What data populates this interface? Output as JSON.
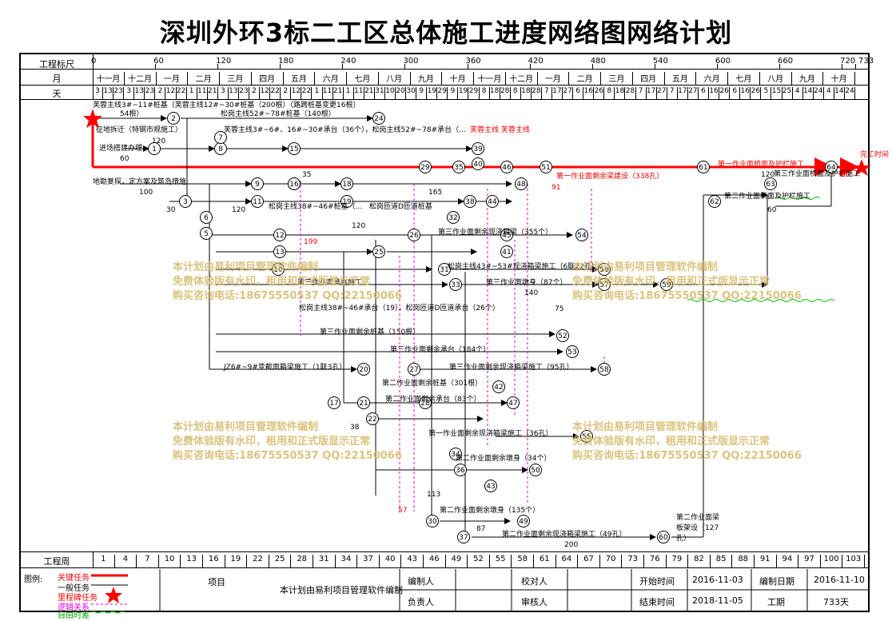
{
  "title": "深圳外环3标二工区总体施工进度网络图网络计划",
  "header": {
    "scale_label": "工程标尺",
    "month_label": "月",
    "day_label": "天",
    "week_label": "工程周"
  },
  "scale_ticks": [
    "0",
    "60",
    "120",
    "180",
    "240",
    "300",
    "360",
    "420",
    "480",
    "540",
    "600",
    "660",
    "720",
    "733"
  ],
  "months": [
    "十一月",
    "十二月",
    "一月",
    "二月",
    "三月",
    "四月",
    "五月",
    "六月",
    "七月",
    "八月",
    "九月",
    "十月",
    "十一月",
    "十二月",
    "一月",
    "二月",
    "三月",
    "四月",
    "五月",
    "六月",
    "七月",
    "八月",
    "九月",
    "十月"
  ],
  "days": [
    "3",
    "13",
    "23",
    "3",
    "13",
    "23",
    "2",
    "12",
    "22",
    "1",
    "11",
    "21",
    "3",
    "13",
    "23",
    "2",
    "12",
    "22",
    "2",
    "12",
    "22",
    "1",
    "11",
    "21",
    "1",
    "11",
    "21",
    "31",
    "10",
    "20",
    "30",
    "9",
    "19",
    "29",
    "9",
    "19",
    "29",
    "8",
    "18",
    "28",
    "8",
    "18",
    "28",
    "7",
    "17",
    "27",
    "6",
    "16",
    "26",
    "8",
    "18",
    "28",
    "7",
    "17",
    "27",
    "7",
    "17",
    "27",
    "6",
    "16",
    "26",
    "6",
    "16",
    "26",
    "5",
    "15",
    "25",
    "4",
    "14",
    "24",
    "4",
    "14",
    "24"
  ],
  "weeks": [
    "1",
    "4",
    "7",
    "10",
    "13",
    "16",
    "19",
    "22",
    "25",
    "28",
    "31",
    "34",
    "37",
    "40",
    "43",
    "46",
    "49",
    "52",
    "55",
    "58",
    "61",
    "64",
    "67",
    "70",
    "73",
    "76",
    "79",
    "82",
    "85",
    "88",
    "91",
    "94",
    "97",
    "100",
    "103"
  ],
  "watermark": {
    "line1": "本计划由易利项目管理软件编制",
    "line2": "免费体验版有水印，租用和正式版显示正常",
    "line3": "购买咨询电话:18675550537 QQ:22150066"
  },
  "tasks": [
    {
      "text": "芙蓉主线3#~11#桩基（芙蓉主线12#~30#桩基（200根）（路跨桩基变更16根）",
      "red": false
    },
    {
      "text": "54根）",
      "red": false
    },
    {
      "text": "松岗主线52#~78#桩基（140根）",
      "red": false
    },
    {
      "text": "征地拆迁（特钢市规施工）",
      "red": false
    },
    {
      "text": "芙蓉主线3#~6#、16#~30#承台（36个），松岗主线52#~78#承台（...",
      "red": false
    },
    {
      "text": "芙蓉主线 芙蓉主线",
      "red": true
    },
    {
      "text": "进场搭建办理",
      "red": false
    },
    {
      "text": "地勘复探，定方案及筑岛措施",
      "red": false
    },
    {
      "text": "第一作业面剩余梁建设（338孔）",
      "red": true
    },
    {
      "text": "第一作业面桥面及护栏施工",
      "red": true
    },
    {
      "text": "第二作业面桥面及护栏施工",
      "red": false
    },
    {
      "text": "第三作业面桥面及护栏施工",
      "red": false
    },
    {
      "text": "松岗主线38#~46#桩基（...",
      "red": false
    },
    {
      "text": "松岗匝道D匝道桩基",
      "red": false
    },
    {
      "text": "第三作业面剩余现浇箱梁（355个）",
      "red": false
    },
    {
      "text": "松岗主线43#~53#现浇箱梁施工（6联22孔）",
      "red": false
    },
    {
      "text": "第三作业面承台施工",
      "red": false
    },
    {
      "text": "第三作业面墩身（87个）",
      "red": false
    },
    {
      "text": "松岗主线38#~46#承台（19），松岗匝道D匝道承台（26个）",
      "red": false
    },
    {
      "text": "第三作业面剩余桩基（150根）",
      "red": false
    },
    {
      "text": "第三作业面剩余承台（184个）",
      "red": false
    },
    {
      "text": "JZ6#~9#变截面箱梁施工（1联3孔）",
      "red": false
    },
    {
      "text": "第三作业面剩余现浇箱梁施工（95孔）",
      "red": false
    },
    {
      "text": "第二作业面剩余桩基（301根）",
      "red": false
    },
    {
      "text": "第二作业面剩余承台（83个）",
      "red": false
    },
    {
      "text": "第一作业面剩余现浇箱梁施工（36孔）",
      "red": false
    },
    {
      "text": "第二作业面剩余墩身（34个）",
      "red": false
    },
    {
      "text": "第二作业面剩余墩身（135个）",
      "red": false
    },
    {
      "text": "第二作业面剩余现浇箱梁施工（49孔）",
      "red": false
    },
    {
      "text": "第二作业面梁板架设（127孔）",
      "red": false
    },
    {
      "text": "完工时间",
      "red": true
    }
  ],
  "durations": [
    "60",
    "120",
    "100",
    "30",
    "38",
    "165",
    "120",
    "140",
    "75",
    "200",
    "87",
    "113",
    "199",
    "57",
    "91",
    "120",
    "35",
    "30",
    "60",
    "120"
  ],
  "legend": {
    "label": "图例:",
    "items": [
      "关键任务",
      "一般任务",
      "里程碑任务",
      "逻辑关系",
      "自由时差"
    ]
  },
  "footer": {
    "project_label": "项目",
    "software": "本计划由易利项目管理软件编制",
    "editor_label": "编制人",
    "reviewer_label": "校对人",
    "owner_label": "负责人",
    "auditor_label": "审核人",
    "start_label": "开始时间",
    "start_value": "2016-11-03",
    "end_label": "结束时间",
    "end_value": "2018-11-05",
    "date_label": "编制日期",
    "date_value": "2016-11-10",
    "duration_label": "工期",
    "duration_value": "733天"
  },
  "colors": {
    "critical": "#ff0000",
    "normal": "#000000",
    "logic": "#e000e0",
    "float": "#00c000",
    "watermark": "#d5b867"
  }
}
